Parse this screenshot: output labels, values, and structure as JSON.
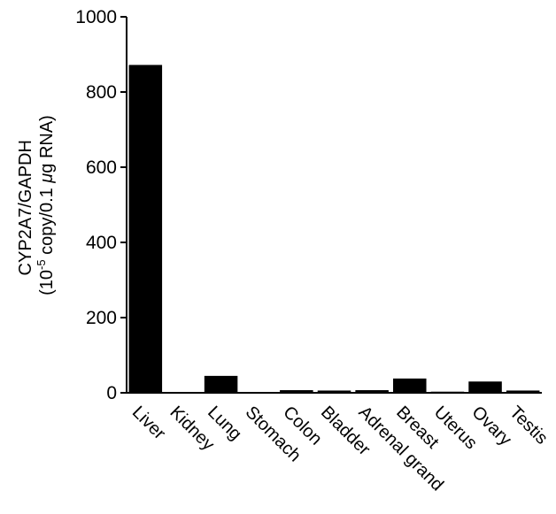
{
  "chart_data": {
    "type": "bar",
    "categories": [
      "Liver",
      "Kidney",
      "Lung",
      "Stomach",
      "Colon",
      "Bladder",
      "Adrenal grand",
      "Breast",
      "Uterus",
      "Ovary",
      "Testis"
    ],
    "values": [
      872,
      0,
      45,
      0,
      7,
      6,
      7,
      38,
      3,
      30,
      6
    ],
    "title": "",
    "xlabel": "",
    "ylabel_line1": "CYP2A7/GAPDH",
    "ylabel_line2_pre": "(10",
    "ylabel_line2_sup": "-5",
    "ylabel_line2_mid": " copy/0.1 ",
    "ylabel_line2_mu": "μ",
    "ylabel_line2_post": "g RNA)",
    "ylim": [
      0,
      1000
    ],
    "yticks": [
      0,
      200,
      400,
      600,
      800,
      1000
    ],
    "grid": false,
    "bar_color": "#000000"
  }
}
